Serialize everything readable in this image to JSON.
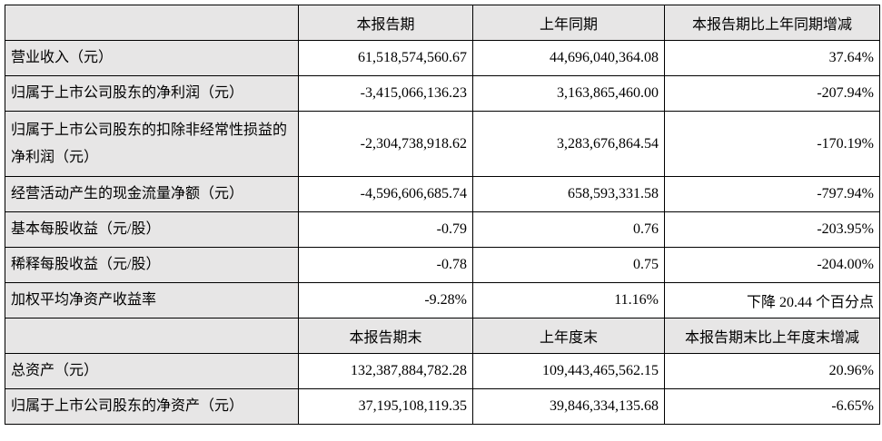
{
  "sections": [
    {
      "header": [
        "本报告期",
        "上年同期",
        "本报告期比上年同期增减"
      ],
      "rows": [
        [
          "营业收入（元）",
          "61,518,574,560.67",
          "44,696,040,364.08",
          "37.64%"
        ],
        [
          "归属于上市公司股东的净利润（元）",
          "-3,415,066,136.23",
          "3,163,865,460.00",
          "-207.94%"
        ],
        [
          "归属于上市公司股东的扣除非经常性损益的净利润（元）",
          "-2,304,738,918.62",
          "3,283,676,864.54",
          "-170.19%"
        ],
        [
          "经营活动产生的现金流量净额（元）",
          "-4,596,606,685.74",
          "658,593,331.58",
          "-797.94%"
        ],
        [
          "基本每股收益（元/股）",
          "-0.79",
          "0.76",
          "-203.95%"
        ],
        [
          "稀释每股收益（元/股）",
          "-0.78",
          "0.75",
          "-204.00%"
        ],
        [
          "加权平均净资产收益率",
          "-9.28%",
          "11.16%",
          "下降 20.44 个百分点"
        ]
      ]
    },
    {
      "header": [
        "本报告期末",
        "上年度末",
        "本报告期末比上年度末增减"
      ],
      "rows": [
        [
          "总资产（元）",
          "132,387,884,782.28",
          "109,443,465,562.15",
          "20.96%"
        ],
        [
          "归属于上市公司股东的净资产（元）",
          "37,195,108,119.35",
          "39,846,334,135.68",
          "-6.65%"
        ]
      ]
    }
  ]
}
